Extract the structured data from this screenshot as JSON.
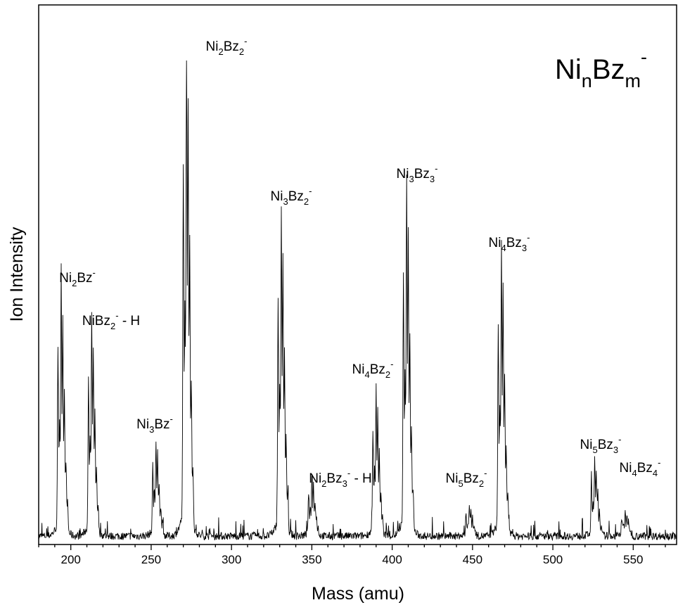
{
  "chart_data": {
    "type": "line",
    "title": "",
    "xlabel": "Mass (amu)",
    "ylabel": "Ion Intensity",
    "xlim": [
      180,
      577
    ],
    "ylim": [
      0,
      100
    ],
    "x_ticks": [
      200,
      250,
      300,
      350,
      400,
      450,
      500,
      550
    ],
    "x_minor_step": 10,
    "y_ticks_labeled": false,
    "grid": false,
    "legend": "none",
    "line_color": "#000000",
    "series_label": {
      "parts": [
        {
          "t": "Ni",
          "s": "n"
        },
        {
          "t": "n",
          "s": "sub"
        },
        {
          "t": "Bz",
          "s": "n"
        },
        {
          "t": "m",
          "s": "sub"
        },
        {
          "t": "-",
          "s": "sup"
        }
      ],
      "position": "top-right"
    },
    "peaks": [
      {
        "mass": 194,
        "intensity": 50,
        "label": [
          {
            "t": "Ni",
            "s": "n"
          },
          {
            "t": "2",
            "s": "sub"
          },
          {
            "t": "Bz",
            "s": "n"
          },
          {
            "t": "-",
            "s": "sup"
          }
        ]
      },
      {
        "mass": 213,
        "intensity": 43,
        "label": [
          {
            "t": "NiBz",
            "s": "n"
          },
          {
            "t": "2",
            "s": "sub"
          },
          {
            "t": "-",
            "s": "sup"
          },
          {
            "t": " - H",
            "s": "n"
          }
        ]
      },
      {
        "mass": 253,
        "intensity": 19,
        "label": [
          {
            "t": "Ni",
            "s": "n"
          },
          {
            "t": "3",
            "s": "sub"
          },
          {
            "t": "Bz",
            "s": "n"
          },
          {
            "t": "-",
            "s": "sup"
          }
        ]
      },
      {
        "mass": 272,
        "intensity": 100,
        "label": [
          {
            "t": "Ni",
            "s": "n"
          },
          {
            "t": "2",
            "s": "sub"
          },
          {
            "t": "Bz",
            "s": "n"
          },
          {
            "t": "2",
            "s": "sub"
          },
          {
            "t": "-",
            "s": "sup"
          }
        ]
      },
      {
        "mass": 331,
        "intensity": 64,
        "label": [
          {
            "t": "Ni",
            "s": "n"
          },
          {
            "t": "3",
            "s": "sub"
          },
          {
            "t": "Bz",
            "s": "n"
          },
          {
            "t": "2",
            "s": "sub"
          },
          {
            "t": "-",
            "s": "sup"
          }
        ]
      },
      {
        "mass": 350,
        "intensity": 12,
        "label": [
          {
            "t": "Ni",
            "s": "n"
          },
          {
            "t": "2",
            "s": "sub"
          },
          {
            "t": "Bz",
            "s": "n"
          },
          {
            "t": "3",
            "s": "sub"
          },
          {
            "t": "-",
            "s": "sup"
          },
          {
            "t": " - H",
            "s": "n"
          }
        ]
      },
      {
        "mass": 390,
        "intensity": 29,
        "label": [
          {
            "t": "Ni",
            "s": "n"
          },
          {
            "t": "4",
            "s": "sub"
          },
          {
            "t": "Bz",
            "s": "n"
          },
          {
            "t": "2",
            "s": "sub"
          },
          {
            "t": "-",
            "s": "sup"
          }
        ]
      },
      {
        "mass": 409,
        "intensity": 70,
        "label": [
          {
            "t": "Ni",
            "s": "n"
          },
          {
            "t": "3",
            "s": "sub"
          },
          {
            "t": "Bz",
            "s": "n"
          },
          {
            "t": "3",
            "s": "sub"
          },
          {
            "t": "-",
            "s": "sup"
          }
        ]
      },
      {
        "mass": 448,
        "intensity": 6,
        "label": [
          {
            "t": "Ni",
            "s": "n"
          },
          {
            "t": "5",
            "s": "sub"
          },
          {
            "t": "Bz",
            "s": "n"
          },
          {
            "t": "2",
            "s": "sub"
          },
          {
            "t": "-",
            "s": "sup"
          }
        ]
      },
      {
        "mass": 468,
        "intensity": 57,
        "label": [
          {
            "t": "Ni",
            "s": "n"
          },
          {
            "t": "4",
            "s": "sub"
          },
          {
            "t": "Bz",
            "s": "n"
          },
          {
            "t": "3",
            "s": "sub"
          },
          {
            "t": "-",
            "s": "sup"
          }
        ]
      },
      {
        "mass": 526,
        "intensity": 15,
        "label": [
          {
            "t": "Ni",
            "s": "n"
          },
          {
            "t": "5",
            "s": "sub"
          },
          {
            "t": "Bz",
            "s": "n"
          },
          {
            "t": "3",
            "s": "sub"
          },
          {
            "t": "-",
            "s": "sup"
          }
        ]
      },
      {
        "mass": 545,
        "intensity": 5,
        "label": [
          {
            "t": "Ni",
            "s": "n"
          },
          {
            "t": "4",
            "s": "sub"
          },
          {
            "t": "Bz",
            "s": "n"
          },
          {
            "t": "4",
            "s": "sub"
          },
          {
            "t": "-",
            "s": "sup"
          }
        ]
      }
    ]
  }
}
